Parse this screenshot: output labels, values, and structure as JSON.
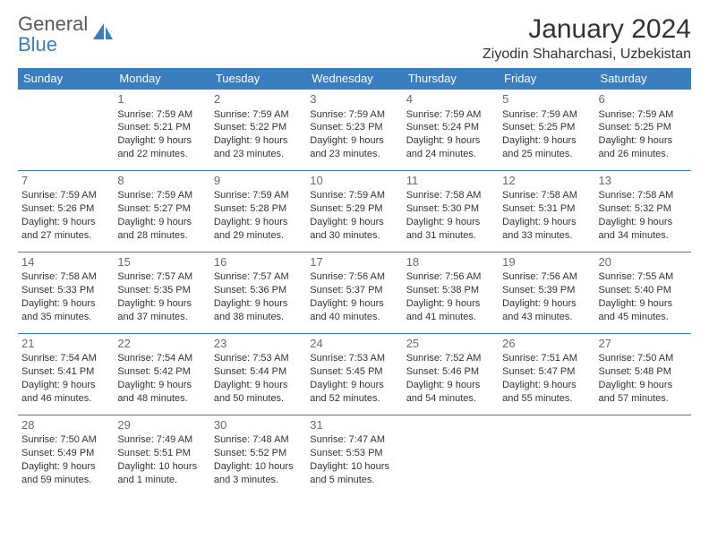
{
  "logo": {
    "general": "General",
    "blue": "Blue"
  },
  "title": "January 2024",
  "location": "Ziyodin Shaharchasi, Uzbekistan",
  "colors": {
    "header_bg": "#3a7ebf",
    "header_fg": "#ffffff",
    "border": "#3a7ebf",
    "text": "#333333",
    "daynum": "#6a6a6a",
    "logo_gray": "#5a5a5a",
    "logo_blue": "#3a7ebf",
    "background": "#ffffff"
  },
  "typography": {
    "title_fontsize": 30,
    "location_fontsize": 16,
    "th_fontsize": 13,
    "cell_fontsize": 11,
    "daynum_fontsize": 13,
    "logo_fontsize": 22
  },
  "weekdays": [
    "Sunday",
    "Monday",
    "Tuesday",
    "Wednesday",
    "Thursday",
    "Friday",
    "Saturday"
  ],
  "weeks": [
    [
      null,
      {
        "n": "1",
        "sr": "Sunrise: 7:59 AM",
        "ss": "Sunset: 5:21 PM",
        "d1": "Daylight: 9 hours",
        "d2": "and 22 minutes."
      },
      {
        "n": "2",
        "sr": "Sunrise: 7:59 AM",
        "ss": "Sunset: 5:22 PM",
        "d1": "Daylight: 9 hours",
        "d2": "and 23 minutes."
      },
      {
        "n": "3",
        "sr": "Sunrise: 7:59 AM",
        "ss": "Sunset: 5:23 PM",
        "d1": "Daylight: 9 hours",
        "d2": "and 23 minutes."
      },
      {
        "n": "4",
        "sr": "Sunrise: 7:59 AM",
        "ss": "Sunset: 5:24 PM",
        "d1": "Daylight: 9 hours",
        "d2": "and 24 minutes."
      },
      {
        "n": "5",
        "sr": "Sunrise: 7:59 AM",
        "ss": "Sunset: 5:25 PM",
        "d1": "Daylight: 9 hours",
        "d2": "and 25 minutes."
      },
      {
        "n": "6",
        "sr": "Sunrise: 7:59 AM",
        "ss": "Sunset: 5:25 PM",
        "d1": "Daylight: 9 hours",
        "d2": "and 26 minutes."
      }
    ],
    [
      {
        "n": "7",
        "sr": "Sunrise: 7:59 AM",
        "ss": "Sunset: 5:26 PM",
        "d1": "Daylight: 9 hours",
        "d2": "and 27 minutes."
      },
      {
        "n": "8",
        "sr": "Sunrise: 7:59 AM",
        "ss": "Sunset: 5:27 PM",
        "d1": "Daylight: 9 hours",
        "d2": "and 28 minutes."
      },
      {
        "n": "9",
        "sr": "Sunrise: 7:59 AM",
        "ss": "Sunset: 5:28 PM",
        "d1": "Daylight: 9 hours",
        "d2": "and 29 minutes."
      },
      {
        "n": "10",
        "sr": "Sunrise: 7:59 AM",
        "ss": "Sunset: 5:29 PM",
        "d1": "Daylight: 9 hours",
        "d2": "and 30 minutes."
      },
      {
        "n": "11",
        "sr": "Sunrise: 7:58 AM",
        "ss": "Sunset: 5:30 PM",
        "d1": "Daylight: 9 hours",
        "d2": "and 31 minutes."
      },
      {
        "n": "12",
        "sr": "Sunrise: 7:58 AM",
        "ss": "Sunset: 5:31 PM",
        "d1": "Daylight: 9 hours",
        "d2": "and 33 minutes."
      },
      {
        "n": "13",
        "sr": "Sunrise: 7:58 AM",
        "ss": "Sunset: 5:32 PM",
        "d1": "Daylight: 9 hours",
        "d2": "and 34 minutes."
      }
    ],
    [
      {
        "n": "14",
        "sr": "Sunrise: 7:58 AM",
        "ss": "Sunset: 5:33 PM",
        "d1": "Daylight: 9 hours",
        "d2": "and 35 minutes."
      },
      {
        "n": "15",
        "sr": "Sunrise: 7:57 AM",
        "ss": "Sunset: 5:35 PM",
        "d1": "Daylight: 9 hours",
        "d2": "and 37 minutes."
      },
      {
        "n": "16",
        "sr": "Sunrise: 7:57 AM",
        "ss": "Sunset: 5:36 PM",
        "d1": "Daylight: 9 hours",
        "d2": "and 38 minutes."
      },
      {
        "n": "17",
        "sr": "Sunrise: 7:56 AM",
        "ss": "Sunset: 5:37 PM",
        "d1": "Daylight: 9 hours",
        "d2": "and 40 minutes."
      },
      {
        "n": "18",
        "sr": "Sunrise: 7:56 AM",
        "ss": "Sunset: 5:38 PM",
        "d1": "Daylight: 9 hours",
        "d2": "and 41 minutes."
      },
      {
        "n": "19",
        "sr": "Sunrise: 7:56 AM",
        "ss": "Sunset: 5:39 PM",
        "d1": "Daylight: 9 hours",
        "d2": "and 43 minutes."
      },
      {
        "n": "20",
        "sr": "Sunrise: 7:55 AM",
        "ss": "Sunset: 5:40 PM",
        "d1": "Daylight: 9 hours",
        "d2": "and 45 minutes."
      }
    ],
    [
      {
        "n": "21",
        "sr": "Sunrise: 7:54 AM",
        "ss": "Sunset: 5:41 PM",
        "d1": "Daylight: 9 hours",
        "d2": "and 46 minutes."
      },
      {
        "n": "22",
        "sr": "Sunrise: 7:54 AM",
        "ss": "Sunset: 5:42 PM",
        "d1": "Daylight: 9 hours",
        "d2": "and 48 minutes."
      },
      {
        "n": "23",
        "sr": "Sunrise: 7:53 AM",
        "ss": "Sunset: 5:44 PM",
        "d1": "Daylight: 9 hours",
        "d2": "and 50 minutes."
      },
      {
        "n": "24",
        "sr": "Sunrise: 7:53 AM",
        "ss": "Sunset: 5:45 PM",
        "d1": "Daylight: 9 hours",
        "d2": "and 52 minutes."
      },
      {
        "n": "25",
        "sr": "Sunrise: 7:52 AM",
        "ss": "Sunset: 5:46 PM",
        "d1": "Daylight: 9 hours",
        "d2": "and 54 minutes."
      },
      {
        "n": "26",
        "sr": "Sunrise: 7:51 AM",
        "ss": "Sunset: 5:47 PM",
        "d1": "Daylight: 9 hours",
        "d2": "and 55 minutes."
      },
      {
        "n": "27",
        "sr": "Sunrise: 7:50 AM",
        "ss": "Sunset: 5:48 PM",
        "d1": "Daylight: 9 hours",
        "d2": "and 57 minutes."
      }
    ],
    [
      {
        "n": "28",
        "sr": "Sunrise: 7:50 AM",
        "ss": "Sunset: 5:49 PM",
        "d1": "Daylight: 9 hours",
        "d2": "and 59 minutes."
      },
      {
        "n": "29",
        "sr": "Sunrise: 7:49 AM",
        "ss": "Sunset: 5:51 PM",
        "d1": "Daylight: 10 hours",
        "d2": "and 1 minute."
      },
      {
        "n": "30",
        "sr": "Sunrise: 7:48 AM",
        "ss": "Sunset: 5:52 PM",
        "d1": "Daylight: 10 hours",
        "d2": "and 3 minutes."
      },
      {
        "n": "31",
        "sr": "Sunrise: 7:47 AM",
        "ss": "Sunset: 5:53 PM",
        "d1": "Daylight: 10 hours",
        "d2": "and 5 minutes."
      },
      null,
      null,
      null
    ]
  ]
}
